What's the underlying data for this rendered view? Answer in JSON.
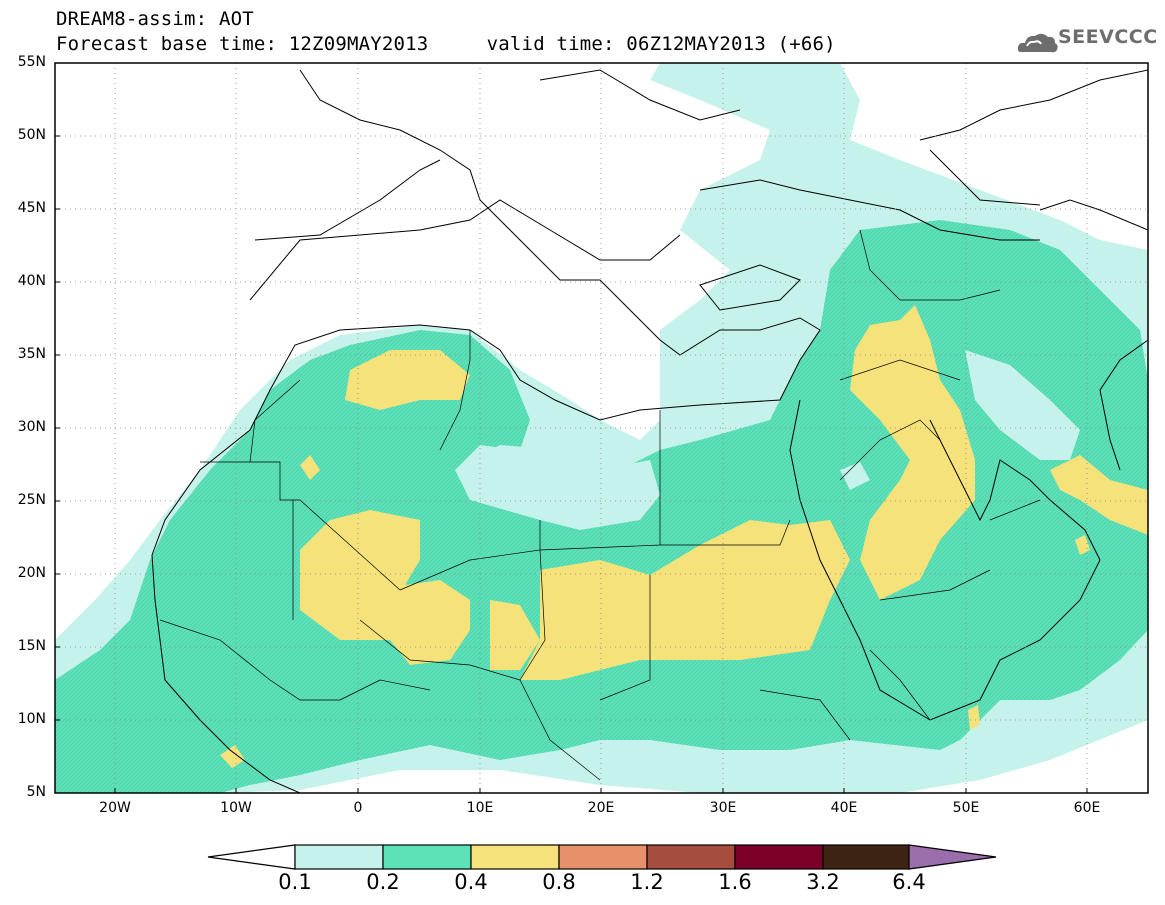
{
  "header": {
    "line1": "DREAM8-assim: AOT",
    "line2": "Forecast base time: 12Z09MAY2013     valid time: 06Z12MAY2013 (+66)"
  },
  "logo": {
    "text": "SEEVCCC",
    "icon": "cloud-logo-icon"
  },
  "map": {
    "lon_range": [
      -25,
      65
    ],
    "lat_range": [
      5,
      55
    ],
    "lat_ticks": [
      "55N",
      "50N",
      "45N",
      "40N",
      "35N",
      "30N",
      "25N",
      "20N",
      "15N",
      "10N",
      "5N"
    ],
    "lon_ticks": [
      "20W",
      "10W",
      "0",
      "10E",
      "20E",
      "30E",
      "40E",
      "50E",
      "60E"
    ],
    "grid": true
  },
  "colorbar": {
    "levels": [
      "0.1",
      "0.2",
      "0.4",
      "0.8",
      "1.2",
      "1.6",
      "3.2",
      "6.4"
    ],
    "colors": [
      "#ffffff",
      "#c6f2ec",
      "#5ce1b9",
      "#f5e27a",
      "#e8906a",
      "#a74d3e",
      "#7a0027",
      "#3d2412",
      "#9a6dab"
    ]
  }
}
